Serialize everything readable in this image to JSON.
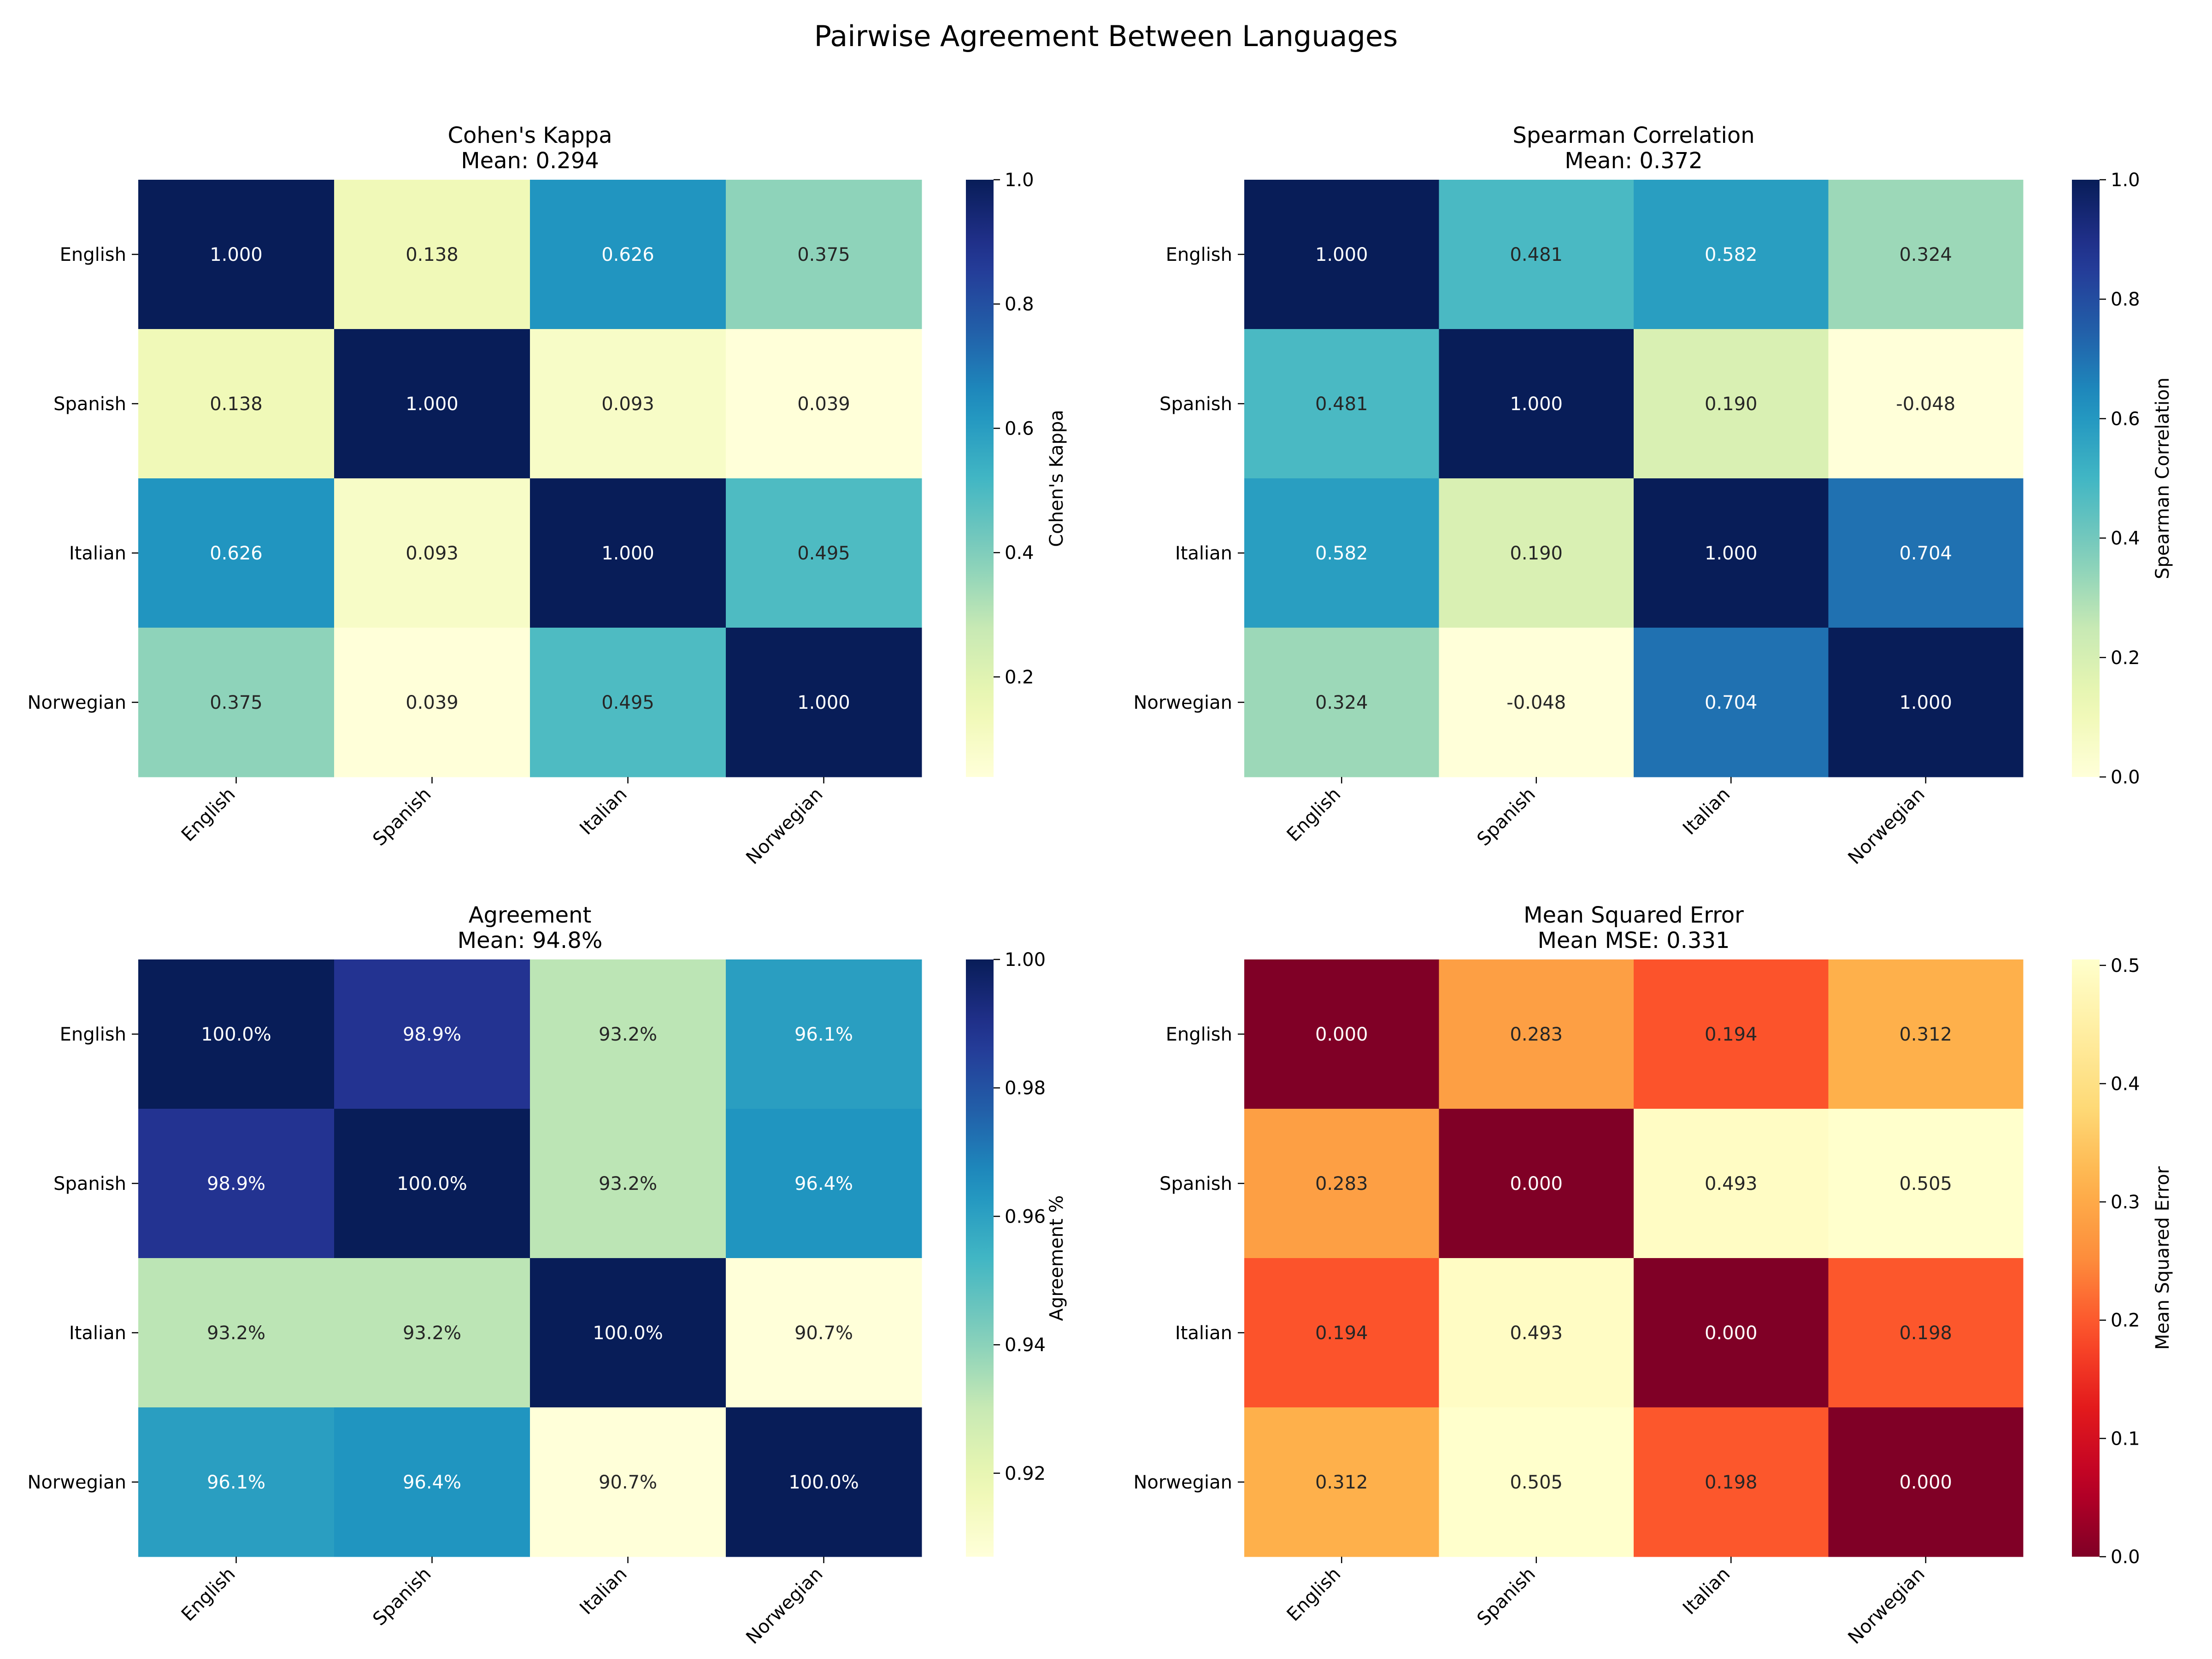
{
  "title": "Pairwise Agreement Between Languages",
  "chart_data": [
    {
      "type": "heatmap",
      "title": "Cohen's Kappa",
      "subtitle": "Mean: 0.294",
      "rows": [
        "English",
        "Spanish",
        "Italian",
        "Norwegian"
      ],
      "cols": [
        "English",
        "Spanish",
        "Italian",
        "Norwegian"
      ],
      "values": [
        [
          1.0,
          0.138,
          0.626,
          0.375
        ],
        [
          0.138,
          1.0,
          0.093,
          0.039
        ],
        [
          0.626,
          0.093,
          1.0,
          0.495
        ],
        [
          0.375,
          0.039,
          0.495,
          1.0
        ]
      ],
      "cell_labels": [
        [
          "1.000",
          "0.138",
          "0.626",
          "0.375"
        ],
        [
          "0.138",
          "1.000",
          "0.093",
          "0.039"
        ],
        [
          "0.626",
          "0.093",
          "1.000",
          "0.495"
        ],
        [
          "0.375",
          "0.039",
          "0.495",
          "1.000"
        ]
      ],
      "colormap": "YlGnBu",
      "vmin": 0.039,
      "vmax": 1.0,
      "colorbar_ticks": [
        0.2,
        0.4,
        0.6,
        0.8,
        1.0
      ],
      "colorbar_tick_labels": [
        "0.2",
        "0.4",
        "0.6",
        "0.8",
        "1.0"
      ],
      "colorbar_label": "Cohen's Kappa"
    },
    {
      "type": "heatmap",
      "title": "Spearman Correlation",
      "subtitle": "Mean: 0.372",
      "rows": [
        "English",
        "Spanish",
        "Italian",
        "Norwegian"
      ],
      "cols": [
        "English",
        "Spanish",
        "Italian",
        "Norwegian"
      ],
      "values": [
        [
          1.0,
          0.481,
          0.582,
          0.324
        ],
        [
          0.481,
          1.0,
          0.19,
          -0.048
        ],
        [
          0.582,
          0.19,
          1.0,
          0.704
        ],
        [
          0.324,
          -0.048,
          0.704,
          1.0
        ]
      ],
      "cell_labels": [
        [
          "1.000",
          "0.481",
          "0.582",
          "0.324"
        ],
        [
          "0.481",
          "1.000",
          "0.190",
          "-0.048"
        ],
        [
          "0.582",
          "0.190",
          "1.000",
          "0.704"
        ],
        [
          "0.324",
          "-0.048",
          "0.704",
          "1.000"
        ]
      ],
      "colormap": "YlGnBu",
      "vmin": 0.0,
      "vmax": 1.0,
      "colorbar_ticks": [
        0.0,
        0.2,
        0.4,
        0.6,
        0.8,
        1.0
      ],
      "colorbar_tick_labels": [
        "0.0",
        "0.2",
        "0.4",
        "0.6",
        "0.8",
        "1.0"
      ],
      "colorbar_label": "Spearman Correlation"
    },
    {
      "type": "heatmap",
      "title": "Agreement",
      "subtitle": "Mean: 94.8%",
      "rows": [
        "English",
        "Spanish",
        "Italian",
        "Norwegian"
      ],
      "cols": [
        "English",
        "Spanish",
        "Italian",
        "Norwegian"
      ],
      "values": [
        [
          1.0,
          0.989,
          0.932,
          0.961
        ],
        [
          0.989,
          1.0,
          0.932,
          0.964
        ],
        [
          0.932,
          0.932,
          1.0,
          0.907
        ],
        [
          0.961,
          0.964,
          0.907,
          1.0
        ]
      ],
      "cell_labels": [
        [
          "100.0%",
          "98.9%",
          "93.2%",
          "96.1%"
        ],
        [
          "98.9%",
          "100.0%",
          "93.2%",
          "96.4%"
        ],
        [
          "93.2%",
          "93.2%",
          "100.0%",
          "90.7%"
        ],
        [
          "96.1%",
          "96.4%",
          "90.7%",
          "100.0%"
        ]
      ],
      "colormap": "YlGnBu",
      "vmin": 0.907,
      "vmax": 1.0,
      "colorbar_ticks": [
        0.92,
        0.94,
        0.96,
        0.98,
        1.0
      ],
      "colorbar_tick_labels": [
        "0.92",
        "0.94",
        "0.96",
        "0.98",
        "1.00"
      ],
      "colorbar_label": "Agreement %"
    },
    {
      "type": "heatmap",
      "title": "Mean Squared Error",
      "subtitle": "Mean MSE: 0.331",
      "rows": [
        "English",
        "Spanish",
        "Italian",
        "Norwegian"
      ],
      "cols": [
        "English",
        "Spanish",
        "Italian",
        "Norwegian"
      ],
      "values": [
        [
          0.0,
          0.283,
          0.194,
          0.312
        ],
        [
          0.283,
          0.0,
          0.493,
          0.505
        ],
        [
          0.194,
          0.493,
          0.0,
          0.198
        ],
        [
          0.312,
          0.505,
          0.198,
          0.0
        ]
      ],
      "cell_labels": [
        [
          "0.000",
          "0.283",
          "0.194",
          "0.312"
        ],
        [
          "0.283",
          "0.000",
          "0.493",
          "0.505"
        ],
        [
          "0.194",
          "0.493",
          "0.000",
          "0.198"
        ],
        [
          "0.312",
          "0.505",
          "0.198",
          "0.000"
        ]
      ],
      "colormap": "YlOrRd_r",
      "vmin": 0.0,
      "vmax": 0.505,
      "colorbar_ticks": [
        0.0,
        0.1,
        0.2,
        0.3,
        0.4,
        0.5
      ],
      "colorbar_tick_labels": [
        "0.0",
        "0.1",
        "0.2",
        "0.3",
        "0.4",
        "0.5"
      ],
      "colorbar_label": "Mean Squared Error"
    }
  ]
}
